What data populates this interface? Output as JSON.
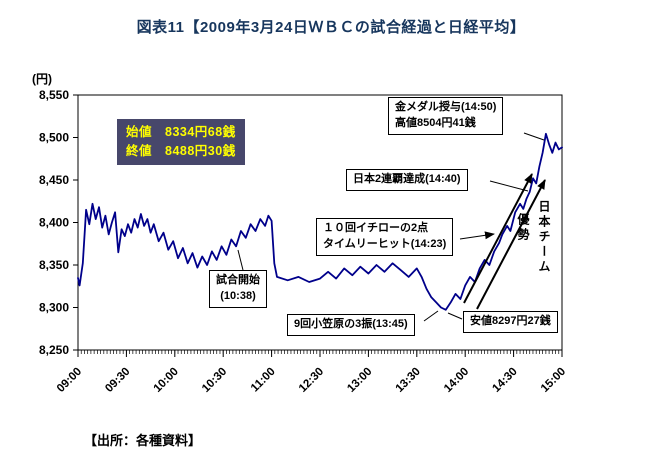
{
  "title": "図表11【2009年3月24日ＷＢＣの試合経過と日経平均】",
  "source": "【出所：各種資料】",
  "colors": {
    "title_color": "#17365d",
    "line_color": "#00008b",
    "open_close_box_bg": "#47476b",
    "open_close_box_text": "#ffff00"
  },
  "chart_data": {
    "type": "line",
    "title": "2009年3月24日ＷＢＣの試合経過と日経平均",
    "xlabel": "",
    "ylabel": "(円)",
    "ylim": [
      8250,
      8550
    ],
    "y_ticks": [
      8550,
      8500,
      8450,
      8400,
      8350,
      8300,
      8250
    ],
    "x_ticks": [
      "09:00",
      "09:30",
      "10:00",
      "10:30",
      "11:00",
      "12:30",
      "13:00",
      "13:30",
      "14:00",
      "14:30",
      "15:00"
    ],
    "grid": false,
    "legend": false,
    "line_color": "#00008b",
    "series": [
      {
        "name": "日経平均",
        "points": [
          [
            "09:00",
            8334.68
          ],
          [
            "09:01",
            8326
          ],
          [
            "09:03",
            8352
          ],
          [
            "09:05",
            8415
          ],
          [
            "09:07",
            8398
          ],
          [
            "09:09",
            8422
          ],
          [
            "09:11",
            8404
          ],
          [
            "09:13",
            8418
          ],
          [
            "09:15",
            8394
          ],
          [
            "09:17",
            8408
          ],
          [
            "09:19",
            8386
          ],
          [
            "09:21",
            8400
          ],
          [
            "09:23",
            8412
          ],
          [
            "09:25",
            8365
          ],
          [
            "09:27",
            8392
          ],
          [
            "09:29",
            8384
          ],
          [
            "09:31",
            8398
          ],
          [
            "09:33",
            8388
          ],
          [
            "09:35",
            8404
          ],
          [
            "09:37",
            8394
          ],
          [
            "09:39",
            8410
          ],
          [
            "09:41",
            8396
          ],
          [
            "09:43",
            8404
          ],
          [
            "09:45",
            8388
          ],
          [
            "09:47",
            8398
          ],
          [
            "09:50",
            8378
          ],
          [
            "09:53",
            8388
          ],
          [
            "09:56",
            8368
          ],
          [
            "09:59",
            8378
          ],
          [
            "10:02",
            8358
          ],
          [
            "10:05",
            8370
          ],
          [
            "10:08",
            8352
          ],
          [
            "10:11",
            8364
          ],
          [
            "10:14",
            8347
          ],
          [
            "10:17",
            8360
          ],
          [
            "10:20",
            8350
          ],
          [
            "10:23",
            8366
          ],
          [
            "10:26",
            8356
          ],
          [
            "10:29",
            8372
          ],
          [
            "10:32",
            8362
          ],
          [
            "10:35",
            8380
          ],
          [
            "10:38",
            8372
          ],
          [
            "10:41",
            8390
          ],
          [
            "10:44",
            8382
          ],
          [
            "10:47",
            8398
          ],
          [
            "10:50",
            8390
          ],
          [
            "10:53",
            8404
          ],
          [
            "10:56",
            8396
          ],
          [
            "10:58",
            8408
          ],
          [
            "11:00",
            8402
          ],
          [
            "11:05",
            8352
          ],
          [
            "11:10",
            8336
          ],
          [
            "11:30",
            8332
          ],
          [
            "11:50",
            8336
          ],
          [
            "12:10",
            8330
          ],
          [
            "12:30",
            8334
          ],
          [
            "12:35",
            8342
          ],
          [
            "12:40",
            8334
          ],
          [
            "12:45",
            8346
          ],
          [
            "12:50",
            8338
          ],
          [
            "12:55",
            8348
          ],
          [
            "13:00",
            8340
          ],
          [
            "13:05",
            8350
          ],
          [
            "13:10",
            8342
          ],
          [
            "13:15",
            8352
          ],
          [
            "13:20",
            8344
          ],
          [
            "13:25",
            8336
          ],
          [
            "13:30",
            8346
          ],
          [
            "13:33",
            8336
          ],
          [
            "13:36",
            8322
          ],
          [
            "13:39",
            8312
          ],
          [
            "13:42",
            8306
          ],
          [
            "13:45",
            8300
          ],
          [
            "13:48",
            8297.27
          ],
          [
            "13:51",
            8306
          ],
          [
            "13:54",
            8316
          ],
          [
            "13:57",
            8310
          ],
          [
            "14:00",
            8326
          ],
          [
            "14:03",
            8336
          ],
          [
            "14:06",
            8330
          ],
          [
            "14:09",
            8346
          ],
          [
            "14:12",
            8356
          ],
          [
            "14:15",
            8350
          ],
          [
            "14:18",
            8366
          ],
          [
            "14:21",
            8376
          ],
          [
            "14:23",
            8386
          ],
          [
            "14:26",
            8396
          ],
          [
            "14:28",
            8390
          ],
          [
            "14:31",
            8412
          ],
          [
            "14:34",
            8422
          ],
          [
            "14:36",
            8416
          ],
          [
            "14:38",
            8428
          ],
          [
            "14:40",
            8436
          ],
          [
            "14:42",
            8452
          ],
          [
            "14:44",
            8446
          ],
          [
            "14:46",
            8466
          ],
          [
            "14:48",
            8482
          ],
          [
            "14:50",
            8504.41
          ],
          [
            "14:52",
            8492
          ],
          [
            "14:54",
            8482
          ],
          [
            "14:56",
            8494
          ],
          [
            "14:58",
            8486
          ],
          [
            "15:00",
            8488.3
          ]
        ]
      }
    ],
    "annotations": {
      "open_close": {
        "line1": "始値　8334円68銭",
        "line2": "終値　8488円30銭"
      },
      "gold_medal": {
        "line1": "金メダル授与(14:50)",
        "line2": "高値8504円41銭"
      },
      "victory": {
        "label": "日本2連覇達成(14:40)"
      },
      "ichiro": {
        "line1": "１０回イチローの2点",
        "line2": "タイムリーヒット(14:23)"
      },
      "game_start": {
        "line1": "試合開始",
        "line2": "(10:38)"
      },
      "strikeout": {
        "label": "9回小笠原の3振(13:45)"
      },
      "low": {
        "label": "安値8297円27銭"
      },
      "advantage_right_col": "日本チーム",
      "advantage_left_col": "優勢"
    }
  }
}
